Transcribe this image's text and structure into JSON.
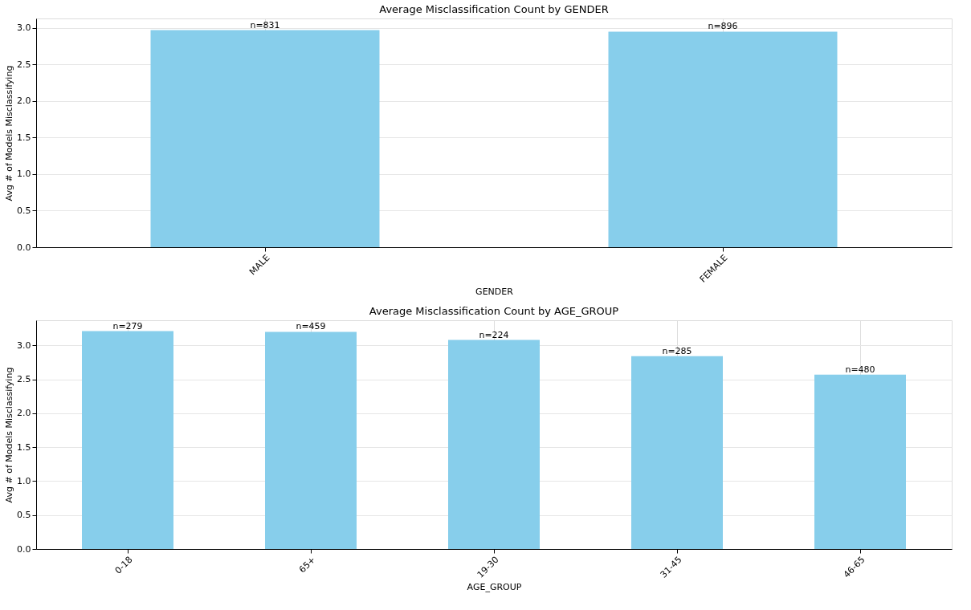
{
  "chart_data": [
    {
      "type": "bar",
      "title": "Average Misclassification Count by GENDER",
      "xlabel": "GENDER",
      "ylabel": "Avg # of Models Misclassifying",
      "categories": [
        "MALE",
        "FEMALE"
      ],
      "values": [
        2.97,
        2.95
      ],
      "color": "#87ceeb",
      "ylim": [
        0,
        3.13
      ],
      "yticks": [
        {
          "value": 0,
          "label": "0.0"
        },
        0.5,
        {
          "value": 1,
          "label": "1.0"
        },
        1.5,
        {
          "value": 2,
          "label": "2.0"
        },
        2.5,
        {
          "value": 3,
          "label": "3.0"
        }
      ],
      "grid": true,
      "annotations": [
        {
          "text": "n=831",
          "x": "MALE",
          "y": 2.97
        },
        {
          "text": "n=896",
          "x": "FEMALE",
          "y": 2.95
        }
      ]
    },
    {
      "type": "bar",
      "title": "Average Misclassification Count by AGE_GROUP",
      "xlabel": "AGE_GROUP",
      "ylabel": "Avg # of Models Misclassifying",
      "categories": [
        "0-18",
        "65+",
        "19-30",
        "31-45",
        "46-65"
      ],
      "values": [
        3.21,
        3.2,
        3.08,
        2.84,
        2.57
      ],
      "color": "#87ceeb",
      "ylim": [
        0,
        3.37
      ],
      "yticks": [
        {
          "value": 0,
          "label": "0.0"
        },
        0.5,
        {
          "value": 1,
          "label": "1.0"
        },
        1.5,
        {
          "value": 2,
          "label": "2.0"
        },
        2.5,
        {
          "value": 3,
          "label": "3.0"
        }
      ],
      "grid": true,
      "annotations": [
        {
          "text": "n=279",
          "x": "0-18",
          "y": 3.21
        },
        {
          "text": "n=459",
          "x": "65+",
          "y": 3.2
        },
        {
          "text": "n=224",
          "x": "19-30",
          "y": 3.08
        },
        {
          "text": "n=285",
          "x": "31-45",
          "y": 2.84
        },
        {
          "text": "n=480",
          "x": "46-65",
          "y": 2.57
        }
      ]
    }
  ]
}
